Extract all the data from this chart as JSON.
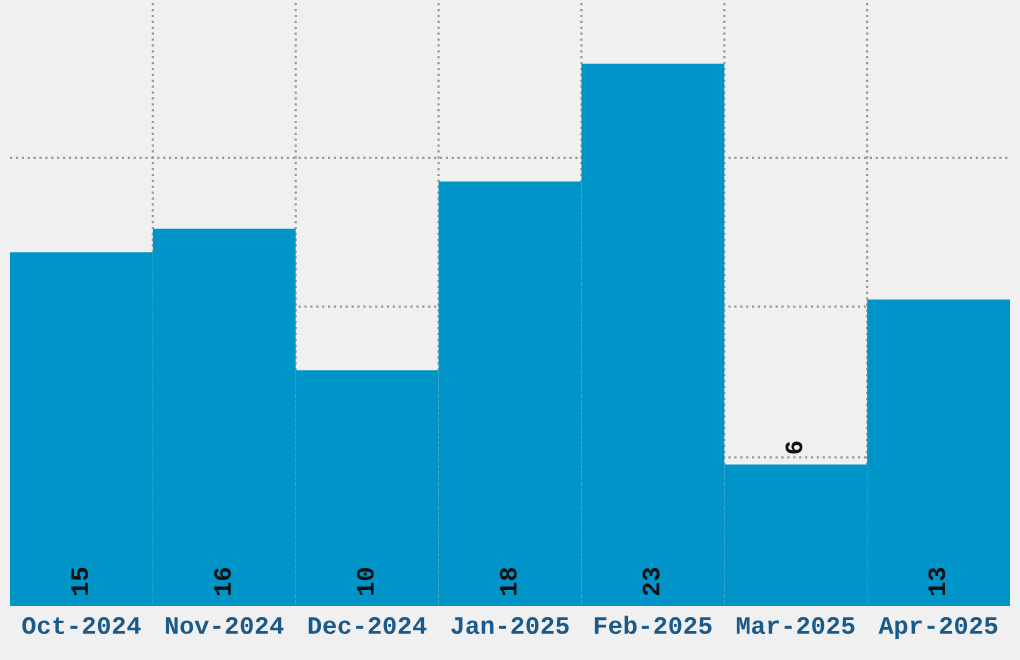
{
  "chart_data": {
    "type": "bar",
    "categories": [
      "Oct-2024",
      "Nov-2024",
      "Dec-2024",
      "Jan-2025",
      "Feb-2025",
      "Mar-2025",
      "Apr-2025"
    ],
    "values": [
      15,
      16,
      10,
      18,
      23,
      6,
      13
    ],
    "color": "#0095c8",
    "data_labels": true,
    "ylim": [
      0,
      25.7
    ],
    "yticks": [
      {
        "value": 6.3,
        "label": null
      },
      {
        "value": 12.7,
        "label": null
      },
      {
        "value": 19.0,
        "label": null
      }
    ],
    "grid": true,
    "tick_labels": "x"
  }
}
